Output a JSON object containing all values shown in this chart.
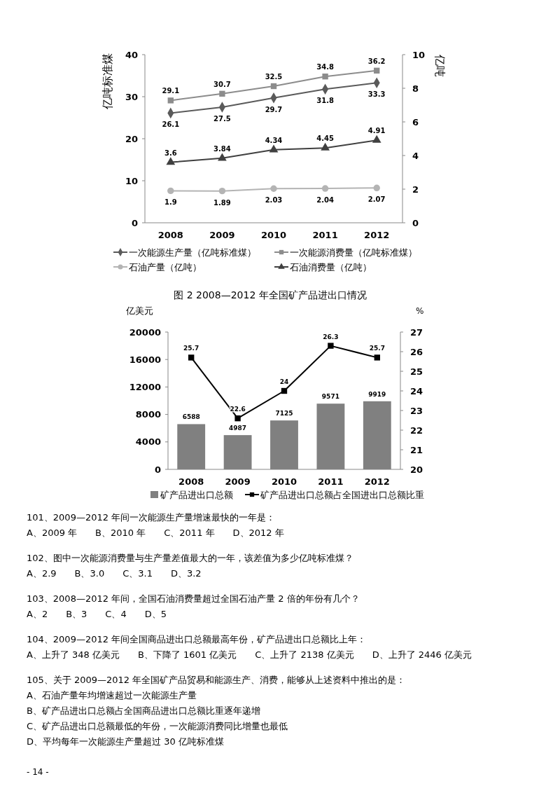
{
  "chart_data": [
    {
      "type": "line",
      "categories": [
        "2008",
        "2009",
        "2010",
        "2011",
        "2012"
      ],
      "ylabel": "亿吨标准煤",
      "y2label": "亿吨",
      "ylim": [
        0,
        40
      ],
      "yticks": [
        0,
        10,
        20,
        30,
        40
      ],
      "y2lim": [
        0,
        10
      ],
      "y2ticks": [
        0,
        2,
        4,
        6,
        8,
        10
      ],
      "data_labels": true,
      "legend": "bottom",
      "series": [
        {
          "name": "一次能源生产量（亿吨标准煤）",
          "color": "#5a5a5a",
          "marker": "diamond",
          "values": [
            26.1,
            27.5,
            29.7,
            31.8,
            33.3
          ]
        },
        {
          "name": "一次能源消费量（亿吨标准煤）",
          "color": "#8c8c8c",
          "marker": "square",
          "values": [
            29.1,
            30.7,
            32.5,
            34.8,
            36.2
          ]
        },
        {
          "name": "石油产量（亿吨）",
          "color": "#b4b4b4",
          "marker": "circle",
          "axis": "y2",
          "values": [
            1.9,
            1.89,
            2.03,
            2.04,
            2.07
          ]
        },
        {
          "name": "石油消费量（亿吨）",
          "color": "#404040",
          "marker": "triangle",
          "axis": "y2",
          "values": [
            3.6,
            3.84,
            4.34,
            4.45,
            4.91
          ]
        }
      ]
    },
    {
      "type": "bar",
      "title": "图 2 2008—2012 年全国矿产品进出口情况",
      "categories": [
        "2008",
        "2009",
        "2010",
        "2011",
        "2012"
      ],
      "ylabel": "亿美元",
      "y2label": "%",
      "ylim": [
        0,
        20000
      ],
      "yticks": [
        0,
        4000,
        8000,
        12000,
        16000,
        20000
      ],
      "y2lim": [
        20,
        27
      ],
      "y2ticks": [
        20,
        21,
        22,
        23,
        24,
        25,
        26,
        27
      ],
      "data_labels": true,
      "legend": "bottom",
      "series": [
        {
          "name": "矿产品进出口总额",
          "color": "#808080",
          "values": [
            6588,
            4987,
            7125,
            9571,
            9919
          ]
        },
        {
          "name": "矿产品进出口总额占全国进出口总额比重",
          "type": "line",
          "axis": "y2",
          "color": "#000000",
          "marker": "square",
          "values": [
            25.7,
            22.6,
            24,
            26.3,
            25.7
          ]
        }
      ],
      "annotations": [
        "101、2009—2012 年间一次能源生产量增速最快的一年是：\nA、2009 年　　B、2010 年　　C、2011 年　　D、2012 年",
        "102、图中一次能源消费量与生产量差值最大的一年，该差值为多少亿吨标准煤？\nA、2.9　　B、3.0　　C、3.1　　D、3.2",
        "103、2008—2012 年间，全国石油消费量超过全国石油产量 2 倍的年份有几个？\nA、2　　B、3　　C、4　　D、5",
        "104、2009—2012 年间全国商品进出口总额最高年份，矿产品进出口总额比上年：\nA、上升了 348 亿美元　　B、下降了 1601 亿美元　　C、上升了 2138 亿美元　　D、上升了 2446 亿美元",
        "105、关于 2009—2012 年全国矿产品贸易和能源生产、消费，能够从上述资料中推出的是：\nA、石油产量年均增速超过一次能源生产量\nB、矿产品进出口总额占全国商品进出口总额比重逐年递增\nC、矿产品进出口总额最低的年份，一次能源消费同比增量也最低\nD、平均每年一次能源生产量超过 30 亿吨标准煤",
        "- 14 -"
      ]
    }
  ]
}
